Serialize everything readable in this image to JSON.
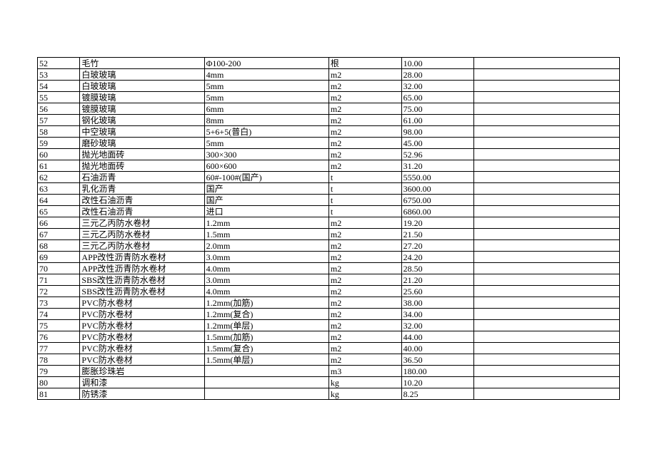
{
  "table": {
    "background_color": "#ffffff",
    "border_color": "#000000",
    "font_family": "SimSun",
    "font_size_pt": 9,
    "column_widths_pct": [
      7.3,
      21.4,
      21.4,
      12.5,
      12.5,
      25
    ],
    "rows": [
      {
        "no": "52",
        "name": "毛竹",
        "spec": "Φ100-200",
        "unit": "根",
        "price": "10.00",
        "note": ""
      },
      {
        "no": "53",
        "name": "白玻玻璃",
        "spec": "4mm",
        "unit": "m2",
        "price": "28.00",
        "note": ""
      },
      {
        "no": "54",
        "name": "白玻玻璃",
        "spec": "5mm",
        "unit": "m2",
        "price": "32.00",
        "note": ""
      },
      {
        "no": "55",
        "name": "镀膜玻璃",
        "spec": "5mm",
        "unit": "m2",
        "price": "65.00",
        "note": ""
      },
      {
        "no": "56",
        "name": "镀膜玻璃",
        "spec": "6mm",
        "unit": "m2",
        "price": "75.00",
        "note": ""
      },
      {
        "no": "57",
        "name": "钢化玻璃",
        "spec": "8mm",
        "unit": "m2",
        "price": "61.00",
        "note": ""
      },
      {
        "no": "58",
        "name": "中空玻璃",
        "spec": "5+6+5(普白)",
        "unit": "m2",
        "price": "98.00",
        "note": ""
      },
      {
        "no": "59",
        "name": "磨砂玻璃",
        "spec": "5mm",
        "unit": "m2",
        "price": "45.00",
        "note": ""
      },
      {
        "no": "60",
        "name": "抛光地面砖",
        "spec": "300×300",
        "unit": "m2",
        "price": "52.96",
        "note": ""
      },
      {
        "no": "61",
        "name": "抛光地面砖",
        "spec": "600×600",
        "unit": "m2",
        "price": "31.20",
        "note": ""
      },
      {
        "no": "62",
        "name": "石油沥青",
        "spec": "60#-100#(国产)",
        "unit": "t",
        "price": "5550.00",
        "note": ""
      },
      {
        "no": "63",
        "name": "乳化沥青",
        "spec": "国产",
        "unit": "t",
        "price": "3600.00",
        "note": ""
      },
      {
        "no": "64",
        "name": "改性石油沥青",
        "spec": "国产",
        "unit": "t",
        "price": "6750.00",
        "note": ""
      },
      {
        "no": "65",
        "name": "改性石油沥青",
        "spec": "进口",
        "unit": "t",
        "price": "6860.00",
        "note": ""
      },
      {
        "no": "66",
        "name": "三元乙丙防水卷材",
        "spec": "1.2mm",
        "unit": "m2",
        "price": "19.20",
        "note": ""
      },
      {
        "no": "67",
        "name": "三元乙丙防水卷材",
        "spec": "1.5mm",
        "unit": "m2",
        "price": "21.50",
        "note": ""
      },
      {
        "no": "68",
        "name": "三元乙丙防水卷材",
        "spec": "2.0mm",
        "unit": "m2",
        "price": "27.20",
        "note": ""
      },
      {
        "no": "69",
        "name": "APP改性沥青防水卷材",
        "spec": "3.0mm",
        "unit": "m2",
        "price": "24.20",
        "note": ""
      },
      {
        "no": "70",
        "name": "APP改性沥青防水卷材",
        "spec": "4.0mm",
        "unit": "m2",
        "price": "28.50",
        "note": ""
      },
      {
        "no": "71",
        "name": "SBS改性沥青防水卷材",
        "spec": "3.0mm",
        "unit": "m2",
        "price": "21.20",
        "note": ""
      },
      {
        "no": "72",
        "name": "SBS改性沥青防水卷材",
        "spec": "4.0mm",
        "unit": "m2",
        "price": "25.60",
        "note": ""
      },
      {
        "no": "73",
        "name": "PVC防水卷材",
        "spec": "1.2mm(加筋)",
        "unit": "m2",
        "price": "38.00",
        "note": ""
      },
      {
        "no": "74",
        "name": "PVC防水卷材",
        "spec": "1.2mm(复合)",
        "unit": "m2",
        "price": "34.00",
        "note": ""
      },
      {
        "no": "75",
        "name": "PVC防水卷材",
        "spec": "1.2mm(单层)",
        "unit": "m2",
        "price": "32.00",
        "note": ""
      },
      {
        "no": "76",
        "name": "PVC防水卷材",
        "spec": "1.5mm(加筋)",
        "unit": "m2",
        "price": "44.00",
        "note": ""
      },
      {
        "no": "77",
        "name": "PVC防水卷材",
        "spec": "1.5mm(复合)",
        "unit": "m2",
        "price": "40.00",
        "note": ""
      },
      {
        "no": "78",
        "name": "PVC防水卷材",
        "spec": "1.5mm(单层)",
        "unit": "m2",
        "price": "36.50",
        "note": ""
      },
      {
        "no": "79",
        "name": "膨胀珍珠岩",
        "spec": "",
        "unit": "m3",
        "price": "180.00",
        "note": ""
      },
      {
        "no": "80",
        "name": "调和漆",
        "spec": "",
        "unit": "kg",
        "price": "10.20",
        "note": ""
      },
      {
        "no": "81",
        "name": "防锈漆",
        "spec": "",
        "unit": "kg",
        "price": "8.25",
        "note": ""
      }
    ]
  }
}
